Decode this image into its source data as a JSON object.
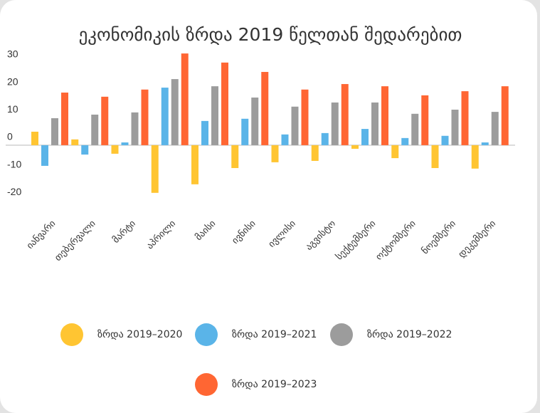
{
  "chart_data": {
    "type": "bar",
    "title": "ეკონომიკის ზრდა 2019 წელთან შედარებით",
    "categories": [
      "იანვარი",
      "თებერვალი",
      "მარტი",
      "აპრილი",
      "მაისი",
      "ივნისი",
      "ივლისი",
      "აგვისტო",
      "სექტემბერი",
      "ოქტომბერი",
      "ნოემბერი",
      "დეკემბერი"
    ],
    "series": [
      {
        "name": "ზრდა 2019–2020",
        "color": "#ffc532",
        "values": [
          4.9,
          2.1,
          -3.1,
          -17.3,
          -14.2,
          -8.3,
          -6.2,
          -5.7,
          -1.3,
          -4.7,
          -8.3,
          -8.5
        ]
      },
      {
        "name": "ზრდა 2019–2021",
        "color": "#5ab4e8",
        "values": [
          -7.5,
          -3.4,
          1.0,
          20.9,
          8.8,
          9.6,
          3.9,
          4.4,
          5.9,
          2.6,
          3.4,
          1.0
        ]
      },
      {
        "name": "ზრდა 2019–2022",
        "color": "#9c9c9c",
        "values": [
          9.8,
          11.1,
          11.9,
          24.0,
          21.4,
          17.3,
          14.0,
          15.5,
          15.5,
          11.4,
          12.9,
          12.1
        ]
      },
      {
        "name": "ზრდა 2019–2023",
        "color": "#ff6633",
        "values": [
          19.1,
          17.6,
          20.2,
          33.3,
          30.0,
          26.6,
          20.2,
          22.2,
          21.4,
          18.1,
          19.6,
          21.4
        ]
      }
    ],
    "ylim": [
      -22,
      34
    ],
    "yticks": [
      30,
      20,
      10,
      0,
      -10,
      -20
    ],
    "grid": false
  }
}
